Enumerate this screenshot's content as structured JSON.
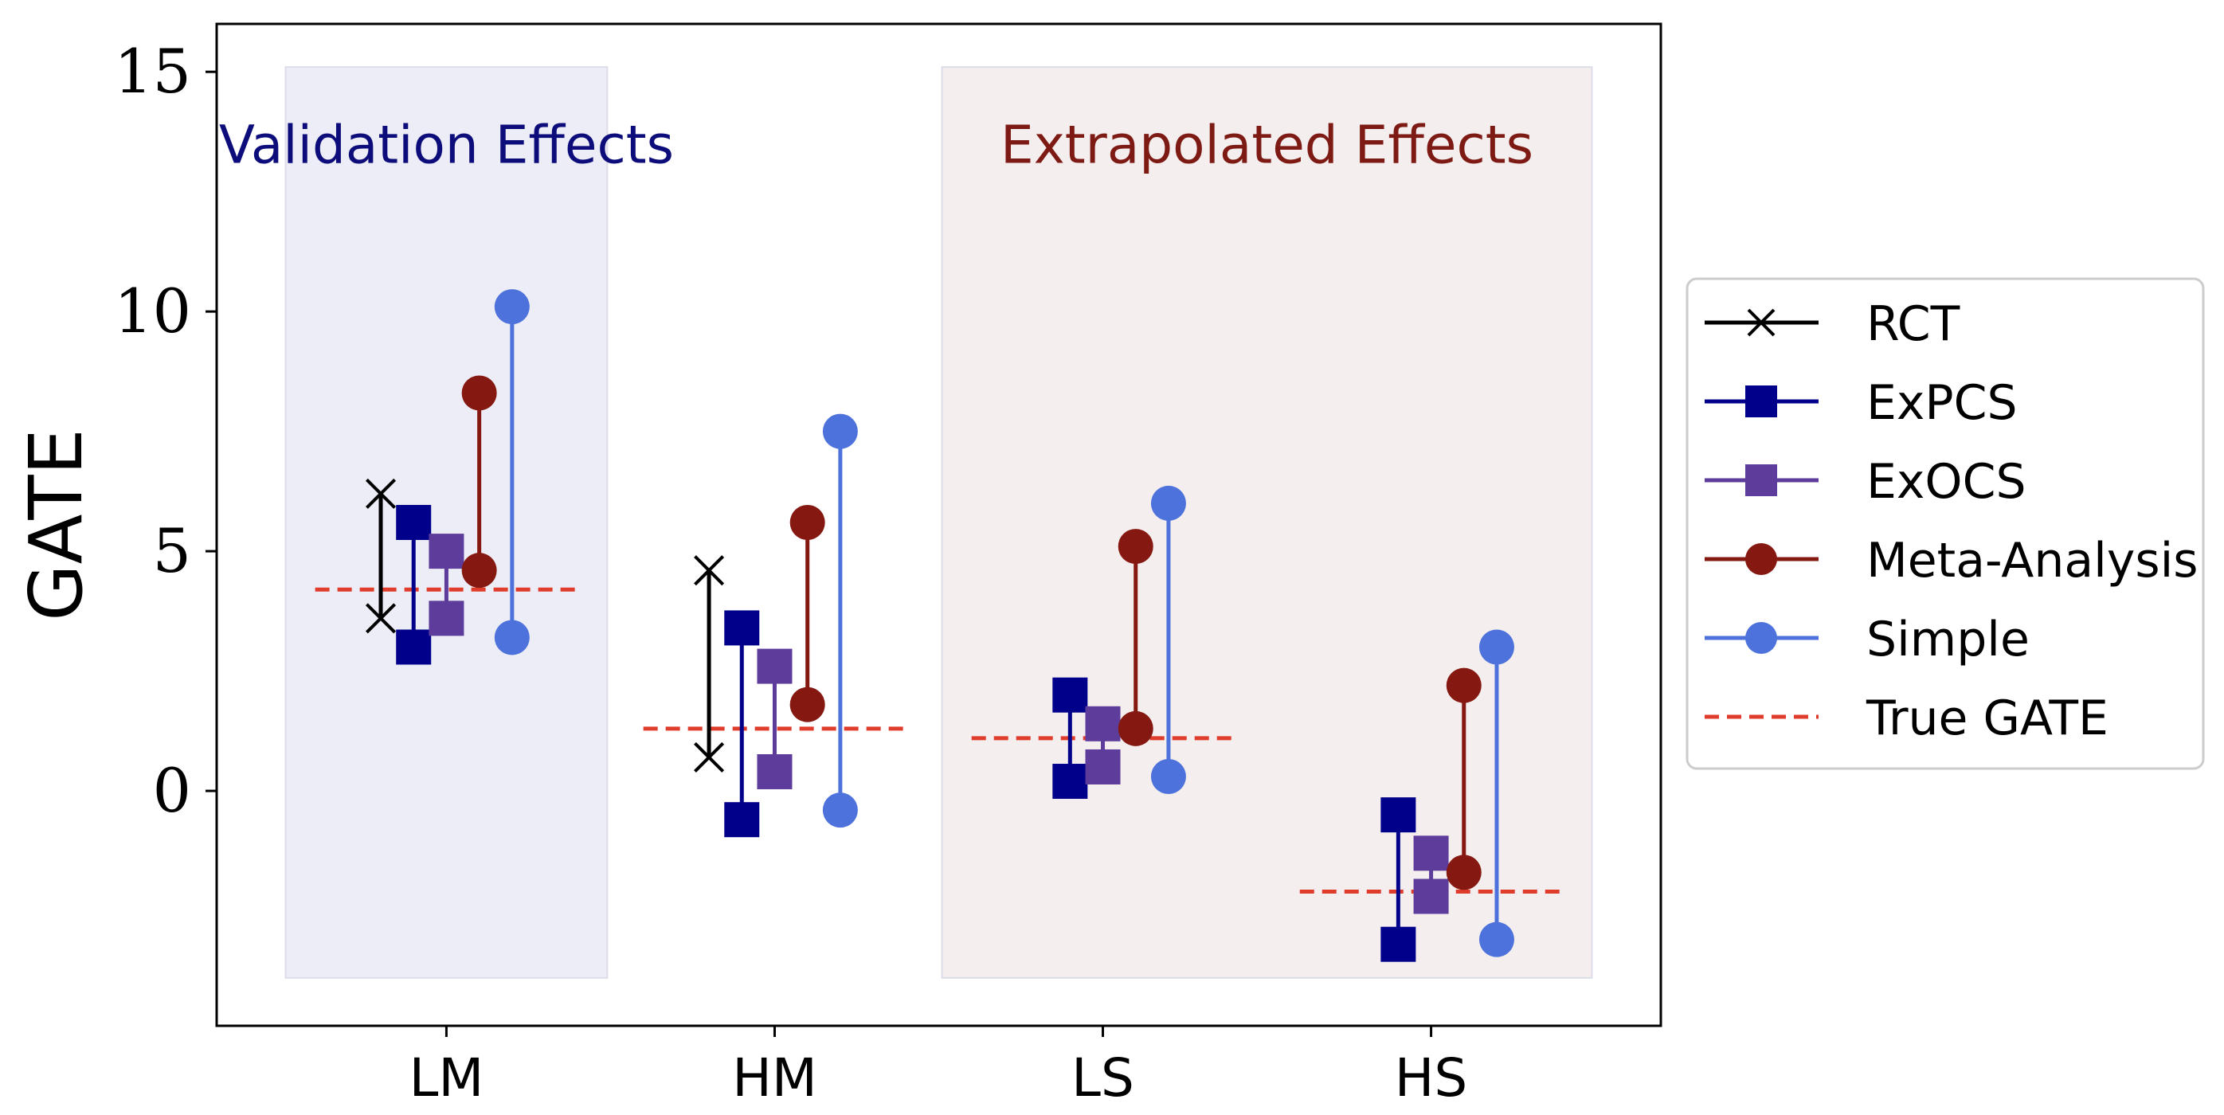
{
  "chart_data": {
    "type": "errorbar-interval",
    "ylabel": "GATE",
    "ylim": [
      -4.9,
      16.0
    ],
    "yticks": [
      0,
      5,
      10,
      15
    ],
    "categories": [
      "LM",
      "HM",
      "LS",
      "HS"
    ],
    "regions": [
      {
        "label": "Validation Effects",
        "x_range": [
          -0.49,
          0.49
        ],
        "y_range": [
          -3.9,
          15.1
        ],
        "fill": "#ecedf6",
        "text_color": "#0c0c7a"
      },
      {
        "label": "Extrapolated Effects",
        "x_range": [
          1.51,
          3.49
        ],
        "y_range": [
          -3.9,
          15.1
        ],
        "fill": "#f5eeee",
        "text_color": "#7d1a14"
      }
    ],
    "series": [
      {
        "name": "RCT",
        "color": "#000000",
        "marker": "x",
        "offset": -0.2,
        "intervals": [
          [
            3.6,
            6.2
          ],
          [
            0.7,
            4.6
          ],
          null,
          null
        ]
      },
      {
        "name": "ExPCS",
        "color": "#00008b",
        "marker": "square",
        "offset": -0.1,
        "intervals": [
          [
            3.0,
            5.6
          ],
          [
            -0.6,
            3.4
          ],
          [
            0.2,
            2.0
          ],
          [
            -3.2,
            -0.5
          ]
        ]
      },
      {
        "name": "ExOCS",
        "color": "#5e3c9b",
        "marker": "square",
        "offset": 0.0,
        "intervals": [
          [
            3.6,
            5.0
          ],
          [
            0.4,
            2.6
          ],
          [
            0.5,
            1.4
          ],
          [
            -2.2,
            -1.3
          ]
        ]
      },
      {
        "name": "Meta-Analysis",
        "color": "#851810",
        "marker": "circle",
        "offset": 0.1,
        "intervals": [
          [
            4.6,
            8.3
          ],
          [
            1.8,
            5.6
          ],
          [
            1.3,
            5.1
          ],
          [
            -1.7,
            2.2
          ]
        ]
      },
      {
        "name": "Simple",
        "color": "#4d72dc",
        "marker": "circle",
        "offset": 0.2,
        "intervals": [
          [
            3.2,
            10.1
          ],
          [
            -0.4,
            7.5
          ],
          [
            0.3,
            6.0
          ],
          [
            -3.1,
            3.0
          ]
        ]
      }
    ],
    "true_gate": {
      "name": "True GATE",
      "color": "#e03c2c",
      "values": [
        4.2,
        1.3,
        1.1,
        -2.1
      ]
    },
    "legend_position": "right"
  }
}
